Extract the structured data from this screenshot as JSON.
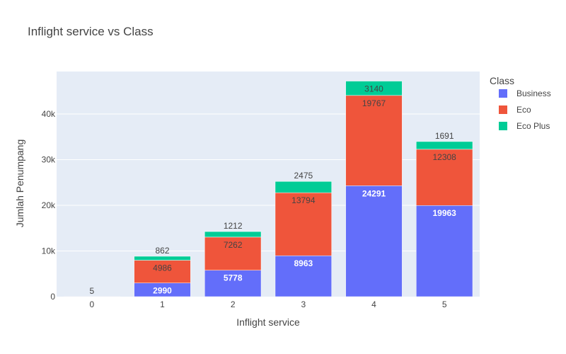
{
  "chart_data": {
    "type": "bar",
    "barmode": "stack",
    "title": "Inflight service vs Class",
    "xlabel": "Inflight service",
    "ylabel": "Jumlah Penumpang",
    "categories": [
      "0",
      "1",
      "2",
      "3",
      "4",
      "5"
    ],
    "series": [
      {
        "name": "Business",
        "color": "#636efa",
        "label_color": "#ffffff",
        "values": [
          0,
          2990,
          5778,
          8963,
          24291,
          19963
        ]
      },
      {
        "name": "Eco",
        "color": "#ef553b",
        "label_color": "#444444",
        "values": [
          5,
          4986,
          7262,
          13794,
          19767,
          12308
        ]
      },
      {
        "name": "Eco Plus",
        "color": "#00cc96",
        "label_color": "#444444",
        "values": [
          0,
          862,
          1212,
          2475,
          3140,
          1691
        ]
      }
    ],
    "ylim": [
      0,
      49300
    ],
    "yticks": [
      0,
      10000,
      20000,
      30000,
      40000
    ],
    "ytick_labels": [
      "0",
      "10k",
      "20k",
      "30k",
      "40k"
    ],
    "legend": {
      "title": "Class",
      "placement": "top-right"
    },
    "grid": true,
    "plot_bg": "#e5ecf6"
  }
}
